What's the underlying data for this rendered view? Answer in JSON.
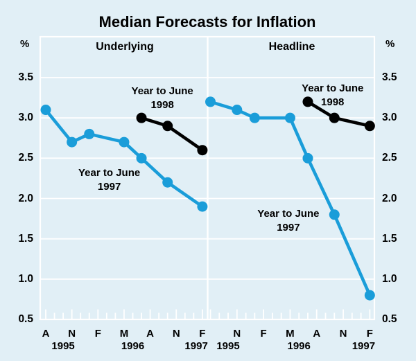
{
  "title": "Median Forecasts for Inflation",
  "colors": {
    "background": "#e1eff6",
    "grid": "#ffffff",
    "line_1997": "#1a9dd9",
    "line_1998": "#000000",
    "text": "#000000"
  },
  "chart_data": {
    "type": "line",
    "title": "Median Forecasts for Inflation",
    "ylabel": "%",
    "ylim": [
      0.5,
      3.5
    ],
    "y_ticks": [
      "3.5",
      "3.0",
      "2.5",
      "2.0",
      "1.5",
      "1.0",
      "0.5"
    ],
    "grid": true,
    "x_description": "Survey dates as months since Aug 1995; axis letters A=Aug, N=Nov, F=Feb, M=May; span Aug 1995 - Feb 1997",
    "panels": [
      {
        "label": "Underlying",
        "x_ticks": [
          {
            "m": 0,
            "label": "A"
          },
          {
            "m": 3,
            "label": "N"
          },
          {
            "m": 6,
            "label": "F"
          },
          {
            "m": 9,
            "label": "M"
          },
          {
            "m": 12,
            "label": "A"
          },
          {
            "m": 15,
            "label": "N"
          },
          {
            "m": 18,
            "label": "F"
          }
        ],
        "years": [
          {
            "m": 2,
            "label": "1995"
          },
          {
            "m": 10,
            "label": "1996"
          },
          {
            "m": 17.3,
            "label": "1997"
          }
        ],
        "series": [
          {
            "name": "Year to June 1997",
            "color": "line_1997",
            "points": [
              [
                0,
                3.1
              ],
              [
                3,
                2.7
              ],
              [
                5,
                2.8
              ],
              [
                9,
                2.7
              ],
              [
                11,
                2.5
              ],
              [
                14,
                2.2
              ],
              [
                18,
                1.9
              ]
            ]
          },
          {
            "name": "Year to June 1998",
            "color": "line_1998",
            "points": [
              [
                11,
                3.0
              ],
              [
                14,
                2.9
              ],
              [
                18,
                2.6
              ]
            ]
          }
        ],
        "annotations": [
          {
            "lines": [
              "Year to June",
              "1998"
            ],
            "m": 13.4,
            "v": 3.24
          },
          {
            "lines": [
              "Year to June",
              "1997"
            ],
            "m": 7.3,
            "v": 2.23
          }
        ]
      },
      {
        "label": "Headline",
        "x_ticks": [
          {
            "m": 3,
            "label": "N"
          },
          {
            "m": 6,
            "label": "F"
          },
          {
            "m": 9,
            "label": "M"
          },
          {
            "m": 12,
            "label": "A"
          },
          {
            "m": 15,
            "label": "N"
          },
          {
            "m": 18,
            "label": "F"
          }
        ],
        "years": [
          {
            "m": 2,
            "label": "1995"
          },
          {
            "m": 10,
            "label": "1996"
          },
          {
            "m": 17.3,
            "label": "1997"
          }
        ],
        "series": [
          {
            "name": "Year to June 1997",
            "color": "line_1997",
            "points": [
              [
                0,
                3.2
              ],
              [
                3,
                3.1
              ],
              [
                5,
                3.0
              ],
              [
                9,
                3.0
              ],
              [
                11,
                2.5
              ],
              [
                14,
                1.8
              ],
              [
                18,
                0.8
              ]
            ]
          },
          {
            "name": "Year to June 1998",
            "color": "line_1998",
            "points": [
              [
                11,
                3.2
              ],
              [
                14,
                3.0
              ],
              [
                18,
                2.9
              ]
            ]
          }
        ],
        "annotations": [
          {
            "lines": [
              "Year to June",
              "1998"
            ],
            "m": 13.8,
            "v": 3.28
          },
          {
            "lines": [
              "Year to June",
              "1997"
            ],
            "m": 8.8,
            "v": 1.72
          }
        ]
      }
    ]
  }
}
